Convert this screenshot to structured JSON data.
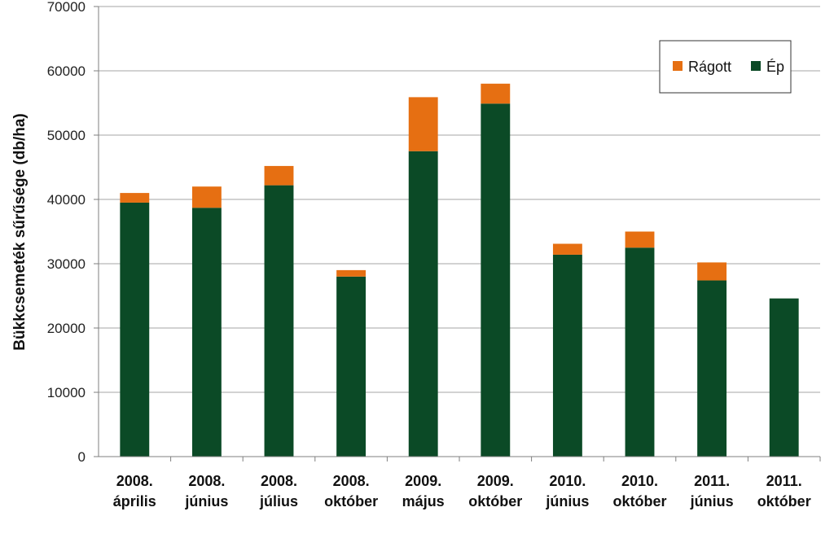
{
  "chart_data": {
    "type": "bar",
    "stacked": true,
    "ylabel": "Bükkcsemeték sűrűsége (db/ha)",
    "xlabel": "",
    "ylim": [
      0,
      70000
    ],
    "yticks": [
      0,
      10000,
      20000,
      30000,
      40000,
      50000,
      60000,
      70000
    ],
    "ytick_labels": [
      "0",
      "10000",
      "20000",
      "30000",
      "40000",
      "50000",
      "60000",
      "70000"
    ],
    "grid": true,
    "legend_position": "top-right",
    "categories": [
      [
        "2008.",
        "április"
      ],
      [
        "2008.",
        "június"
      ],
      [
        "2008.",
        "július"
      ],
      [
        "2008.",
        "október"
      ],
      [
        "2009.",
        "május"
      ],
      [
        "2009.",
        "október"
      ],
      [
        "2010.",
        "június"
      ],
      [
        "2010.",
        "október"
      ],
      [
        "2011.",
        "június"
      ],
      [
        "2011.",
        "október"
      ]
    ],
    "series": [
      {
        "name": "Ép",
        "color": "#0b4a26",
        "values": [
          39500,
          38700,
          42200,
          28000,
          47500,
          54900,
          31400,
          32500,
          27400,
          24600
        ]
      },
      {
        "name": "Rágott",
        "color": "#e66f12",
        "values": [
          1500,
          3300,
          3000,
          1000,
          8400,
          3100,
          1700,
          2500,
          2800,
          0
        ]
      }
    ],
    "legend_order": [
      "Rágott",
      "Ép"
    ]
  }
}
